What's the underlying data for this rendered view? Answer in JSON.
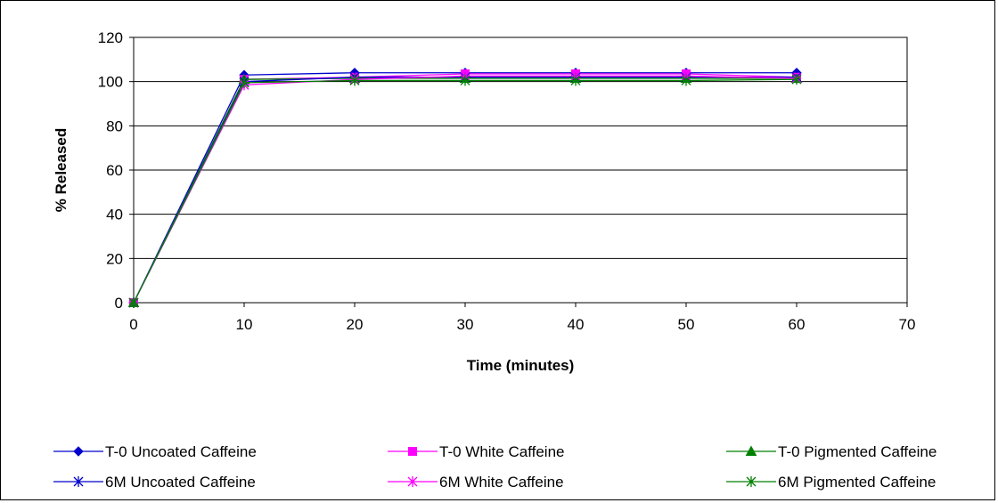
{
  "chart_data": {
    "type": "line",
    "xlabel": "Time (minutes)",
    "ylabel": "% Released",
    "xlim": [
      0,
      70
    ],
    "ylim": [
      0,
      120
    ],
    "xticks": [
      0,
      10,
      20,
      30,
      40,
      50,
      60,
      70
    ],
    "yticks": [
      0,
      20,
      40,
      60,
      80,
      100,
      120
    ],
    "grid": "horizontal",
    "legend_position": "bottom",
    "x": [
      0,
      10,
      20,
      30,
      40,
      50,
      60
    ],
    "series": [
      {
        "name": "T-0 Uncoated Caffeine",
        "color": "#0000CC",
        "marker": "diamond",
        "values": [
          0,
          103,
          104,
          104,
          104,
          104,
          104
        ]
      },
      {
        "name": "T-0 White Caffeine",
        "color": "#FF00FF",
        "marker": "square",
        "values": [
          0,
          101,
          102,
          103.5,
          103.5,
          103.5,
          102
        ]
      },
      {
        "name": "T-0 Pigmented Caffeine",
        "color": "#008000",
        "marker": "triangle",
        "values": [
          0,
          101,
          101.5,
          101.5,
          101.5,
          101.5,
          101.5
        ]
      },
      {
        "name": "6M Uncoated Caffeine",
        "color": "#0000CC",
        "marker": "asterisk",
        "values": [
          0,
          100,
          102,
          102,
          102,
          102,
          102
        ]
      },
      {
        "name": "6M White Caffeine",
        "color": "#FF00FF",
        "marker": "asterisk",
        "values": [
          0,
          98.5,
          101,
          102.5,
          102.5,
          102.5,
          101.5
        ]
      },
      {
        "name": "6M Pigmented Caffeine",
        "color": "#008000",
        "marker": "asterisk",
        "values": [
          0,
          99.5,
          100.5,
          100.5,
          100.5,
          100.5,
          101
        ]
      }
    ]
  }
}
